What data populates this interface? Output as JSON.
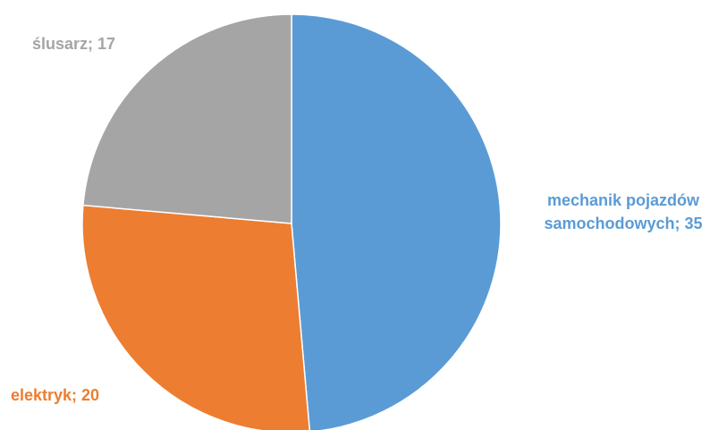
{
  "chart_data": {
    "type": "pie",
    "title": "",
    "start_angle_deg": 0,
    "direction": "clockwise",
    "slices": [
      {
        "name": "mechanik pojazdów samochodowych",
        "value": 35,
        "color": "#5B9BD5",
        "label_lines": [
          "mechanik pojazdów",
          "samochodowych; 35"
        ]
      },
      {
        "name": "elektryk",
        "value": 20,
        "color": "#ED7D31",
        "label_lines": [
          "elektryk; 20"
        ]
      },
      {
        "name": "ślusarz",
        "value": 17,
        "color": "#A5A5A5",
        "label_lines": [
          "ślusarz; 17"
        ]
      }
    ]
  }
}
